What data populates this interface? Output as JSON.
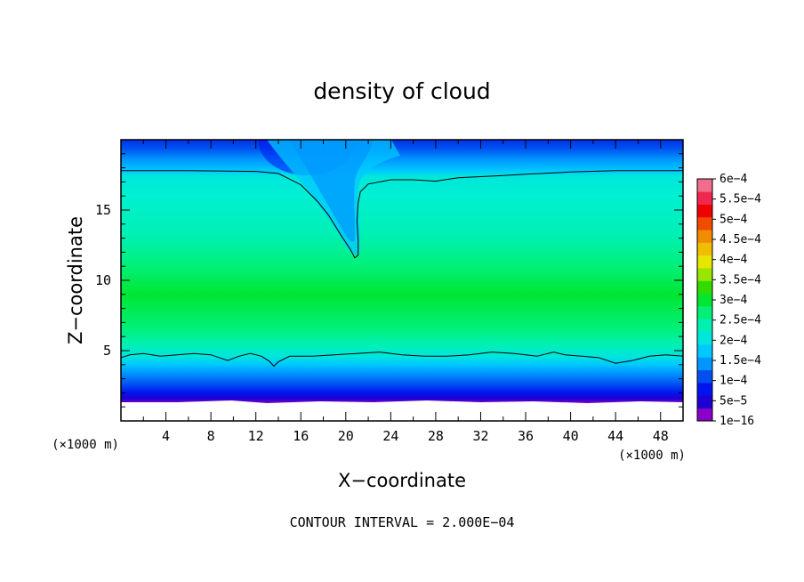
{
  "chart_data": {
    "type": "heatmap",
    "title": "density of cloud",
    "xlabel": "X−coordinate",
    "ylabel": "Z−coordinate",
    "x_unit": "(×1000 m)",
    "y_unit": "(×1000 m)",
    "xlim": [
      0,
      50
    ],
    "ylim": [
      0,
      20
    ],
    "x_ticks": [
      4,
      8,
      12,
      16,
      20,
      24,
      28,
      32,
      36,
      40,
      44,
      48
    ],
    "y_ticks": [
      5,
      10,
      15
    ],
    "footnote": "CONTOUR INTERVAL = 2.000E−04",
    "colorbar": {
      "labels": [
        "6e−4",
        "5.5e−4",
        "5e−4",
        "4.5e−4",
        "4e−4",
        "3.5e−4",
        "3e−4",
        "2.5e−4",
        "2e−4",
        "1.5e−4",
        "1e−4",
        "5e−5",
        "1e−16"
      ],
      "colors": [
        "#8B00C8",
        "#1E00D2",
        "#0014F0",
        "#0050F0",
        "#0096FF",
        "#00C8FF",
        "#00E6DC",
        "#00F0B4",
        "#00F078",
        "#00E632",
        "#32DC00",
        "#96E600",
        "#E6E600",
        "#F0BE00",
        "#F08C00",
        "#F04B00",
        "#F00000",
        "#F02850",
        "#F06E8C"
      ]
    },
    "contour_lines": [
      {
        "level": "2e−4",
        "points": [
          [
            0,
            17.8
          ],
          [
            6,
            17.8
          ],
          [
            12,
            17.75
          ],
          [
            14,
            17.6
          ],
          [
            16,
            16.8
          ],
          [
            17.5,
            15.6
          ],
          [
            18.5,
            14.6
          ],
          [
            19.5,
            13.3
          ],
          [
            20.4,
            12.2
          ],
          [
            20.8,
            11.6
          ],
          [
            21.1,
            11.8
          ],
          [
            21.1,
            12.8
          ],
          [
            21,
            14.2
          ],
          [
            21.1,
            15.5
          ],
          [
            21.3,
            16.3
          ],
          [
            22,
            16.85
          ],
          [
            24,
            17.15
          ],
          [
            26,
            17.15
          ],
          [
            28,
            17.05
          ],
          [
            30,
            17.3
          ],
          [
            34,
            17.45
          ],
          [
            36,
            17.55
          ],
          [
            40,
            17.7
          ],
          [
            44,
            17.8
          ],
          [
            50,
            17.8
          ]
        ]
      },
      {
        "level": "2e−4",
        "points": [
          [
            0,
            4.5
          ],
          [
            0.8,
            4.7
          ],
          [
            2,
            4.8
          ],
          [
            3.5,
            4.6
          ],
          [
            5,
            4.7
          ],
          [
            6.5,
            4.8
          ],
          [
            8,
            4.7
          ],
          [
            9.5,
            4.3
          ],
          [
            10.5,
            4.6
          ],
          [
            11.5,
            4.8
          ],
          [
            12.5,
            4.6
          ],
          [
            13.2,
            4.25
          ],
          [
            13.6,
            3.9
          ],
          [
            14,
            4.2
          ],
          [
            15,
            4.6
          ],
          [
            17,
            4.6
          ],
          [
            19,
            4.7
          ],
          [
            21,
            4.8
          ],
          [
            23,
            4.9
          ],
          [
            25,
            4.7
          ],
          [
            27,
            4.6
          ],
          [
            29,
            4.6
          ],
          [
            31,
            4.7
          ],
          [
            33,
            4.9
          ],
          [
            35,
            4.8
          ],
          [
            37,
            4.6
          ],
          [
            38.5,
            4.9
          ],
          [
            39.5,
            4.7
          ],
          [
            41,
            4.6
          ],
          [
            42.5,
            4.5
          ],
          [
            44,
            4.1
          ],
          [
            45.5,
            4.3
          ],
          [
            47,
            4.6
          ],
          [
            48.5,
            4.7
          ],
          [
            50,
            4.6
          ]
        ]
      }
    ]
  }
}
